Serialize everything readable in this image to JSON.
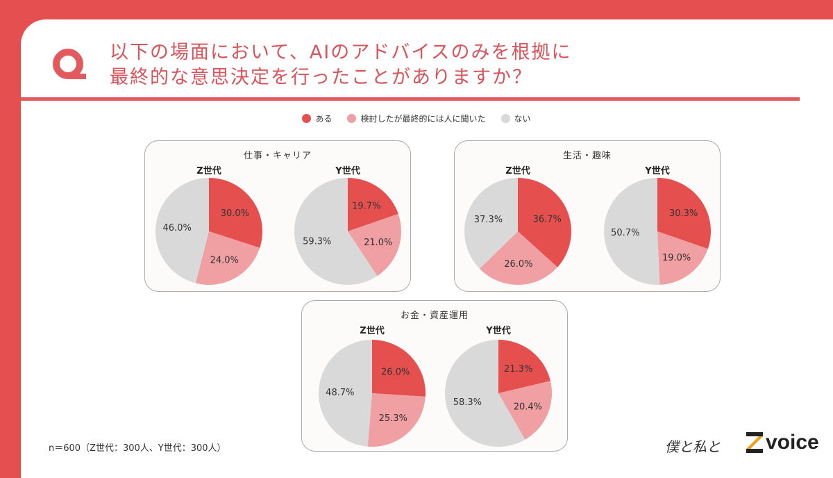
{
  "header": {
    "q_icon": "Q",
    "title_line1": "以下の場面において、AIのアドバイスのみを根拠に",
    "title_line2": "最終的な意思決定を行ったことがありますか？"
  },
  "legend": [
    {
      "label": "ある",
      "color": "#e5504f"
    },
    {
      "label": "検討したが最終的には人に聞いた",
      "color": "#f0a0a3"
    },
    {
      "label": "ない",
      "color": "#d9d9d9"
    }
  ],
  "chart_data": [
    {
      "type": "pie",
      "title": "仕事・キャリア",
      "group": "Z世代",
      "categories": [
        "ある",
        "検討したが最終的には人に聞いた",
        "ない"
      ],
      "values": [
        30.0,
        24.0,
        46.0
      ],
      "labels": [
        "30.0%",
        "24.0%",
        "46.0%"
      ]
    },
    {
      "type": "pie",
      "title": "仕事・キャリア",
      "group": "Y世代",
      "categories": [
        "ある",
        "検討したが最終的には人に聞いた",
        "ない"
      ],
      "values": [
        19.7,
        21.0,
        59.3
      ],
      "labels": [
        "19.7%",
        "21.0%",
        "59.3%"
      ]
    },
    {
      "type": "pie",
      "title": "生活・趣味",
      "group": "Z世代",
      "categories": [
        "ある",
        "検討したが最終的には人に聞いた",
        "ない"
      ],
      "values": [
        36.7,
        26.0,
        37.3
      ],
      "labels": [
        "36.7%",
        "26.0%",
        "37.3%"
      ]
    },
    {
      "type": "pie",
      "title": "生活・趣味",
      "group": "Y世代",
      "categories": [
        "ある",
        "検討したが最終的には人に聞いた",
        "ない"
      ],
      "values": [
        30.3,
        19.0,
        50.7
      ],
      "labels": [
        "30.3%",
        "19.0%",
        "50.7%"
      ]
    },
    {
      "type": "pie",
      "title": "お金・資産運用",
      "group": "Z世代",
      "categories": [
        "ある",
        "検討したが最終的には人に聞いた",
        "ない"
      ],
      "values": [
        26.0,
        25.3,
        48.7
      ],
      "labels": [
        "26.0%",
        "25.3%",
        "48.7%"
      ]
    },
    {
      "type": "pie",
      "title": "お金・資産運用",
      "group": "Y世代",
      "categories": [
        "ある",
        "検討したが最終的には人に聞いた",
        "ない"
      ],
      "values": [
        21.3,
        20.4,
        58.3
      ],
      "labels": [
        "21.3%",
        "20.4%",
        "58.3%"
      ]
    }
  ],
  "panels": [
    {
      "title": "仕事・キャリア",
      "gen_left": "Z世代",
      "gen_right": "Y世代"
    },
    {
      "title": "生活・趣味",
      "gen_left": "Z世代",
      "gen_right": "Y世代"
    },
    {
      "title": "お金・資産運用",
      "gen_left": "Z世代",
      "gen_right": "Y世代"
    }
  ],
  "footer": {
    "note": "n＝600（Z世代：300人、Y世代：300人）",
    "logo_handwritten": "僕と私と",
    "logo_brand": "voice",
    "logo_z": "Z"
  }
}
